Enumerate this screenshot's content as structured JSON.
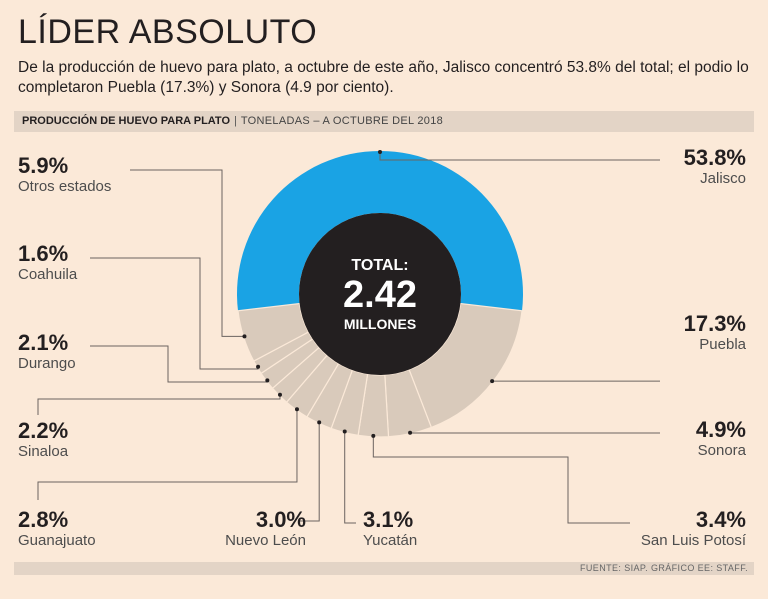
{
  "title": "LÍDER ABSOLUTO",
  "subtitle": "De la producción de huevo para plato, a octubre de este año, Jalisco concentró 53.8% del total; el podio lo completaron Puebla (17.3%) y Sonora (4.9 por ciento).",
  "header_bar": {
    "main": "PRODUCCIÓN DE HUEVO PARA PLATO",
    "sub": "TONELADAS – A OCTUBRE DEL 2018"
  },
  "center": {
    "line1": "TOTAL:",
    "value": "2.42",
    "line2": "MILLONES"
  },
  "footer": "FUENTE: SIAP. GRÁFICO EE: STAFF.",
  "colors": {
    "jalisco": "#1aa3e4",
    "others": "#d9cabb",
    "center": "#231f20",
    "background": "#fbe9d8"
  },
  "chart_data": {
    "type": "pie",
    "title": "Producción de huevo para plato",
    "unit": "toneladas",
    "total": "2.42 millones",
    "slices": [
      {
        "name": "Jalisco",
        "value": 53.8,
        "label": "53.8%"
      },
      {
        "name": "Puebla",
        "value": 17.3,
        "label": "17.3%"
      },
      {
        "name": "Sonora",
        "value": 4.9,
        "label": "4.9%"
      },
      {
        "name": "San Luis Potosí",
        "value": 3.4,
        "label": "3.4%"
      },
      {
        "name": "Yucatán",
        "value": 3.1,
        "label": "3.1%"
      },
      {
        "name": "Nuevo León",
        "value": 3.0,
        "label": "3.0%"
      },
      {
        "name": "Guanajuato",
        "value": 2.8,
        "label": "2.8%"
      },
      {
        "name": "Sinaloa",
        "value": 2.2,
        "label": "2.2%"
      },
      {
        "name": "Durango",
        "value": 2.1,
        "label": "2.1%"
      },
      {
        "name": "Coahuila",
        "value": 1.6,
        "label": "1.6%"
      },
      {
        "name": "Otros estados",
        "value": 5.9,
        "label": "5.9%"
      }
    ]
  }
}
